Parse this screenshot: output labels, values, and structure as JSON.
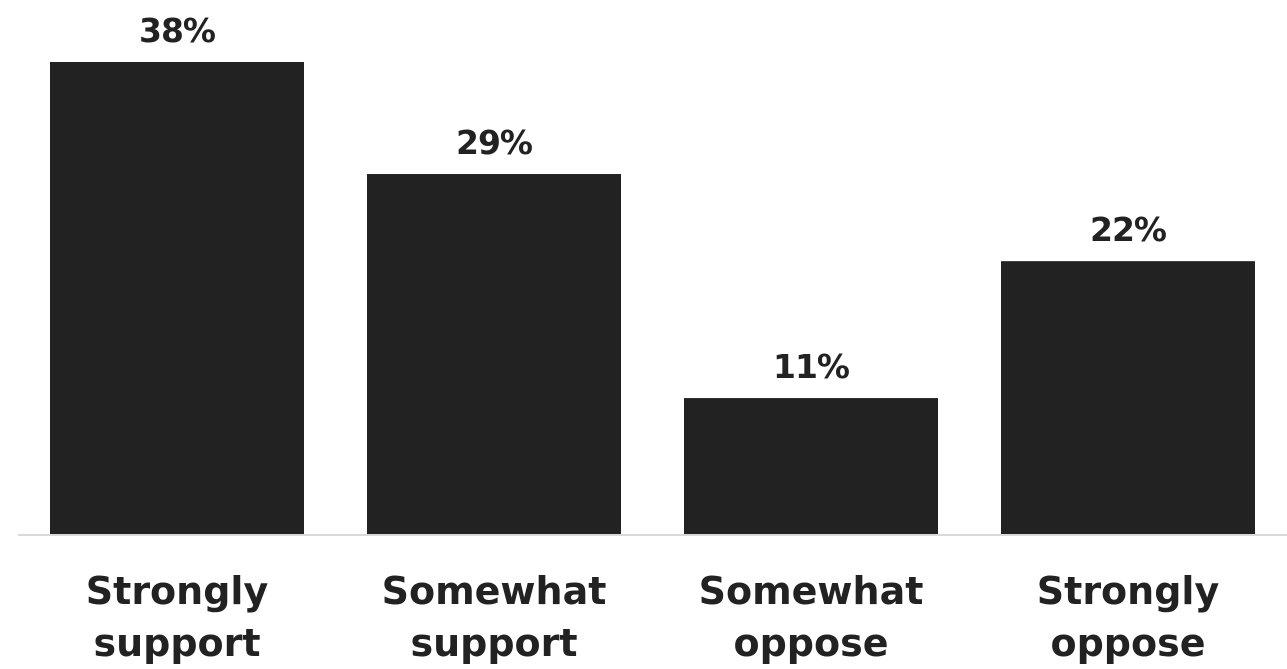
{
  "chart_data": {
    "type": "bar",
    "categories": [
      [
        "Strongly",
        "support"
      ],
      [
        "Somewhat",
        "support"
      ],
      [
        "Somewhat",
        "oppose"
      ],
      [
        "Strongly",
        "oppose"
      ]
    ],
    "values": [
      38,
      29,
      11,
      22
    ],
    "value_labels": [
      "38%",
      "29%",
      "11%",
      "22%"
    ],
    "ylim": [
      0,
      38
    ],
    "grid": false,
    "bar_color": "#222222",
    "baseline_color": "#d9d9d9"
  }
}
